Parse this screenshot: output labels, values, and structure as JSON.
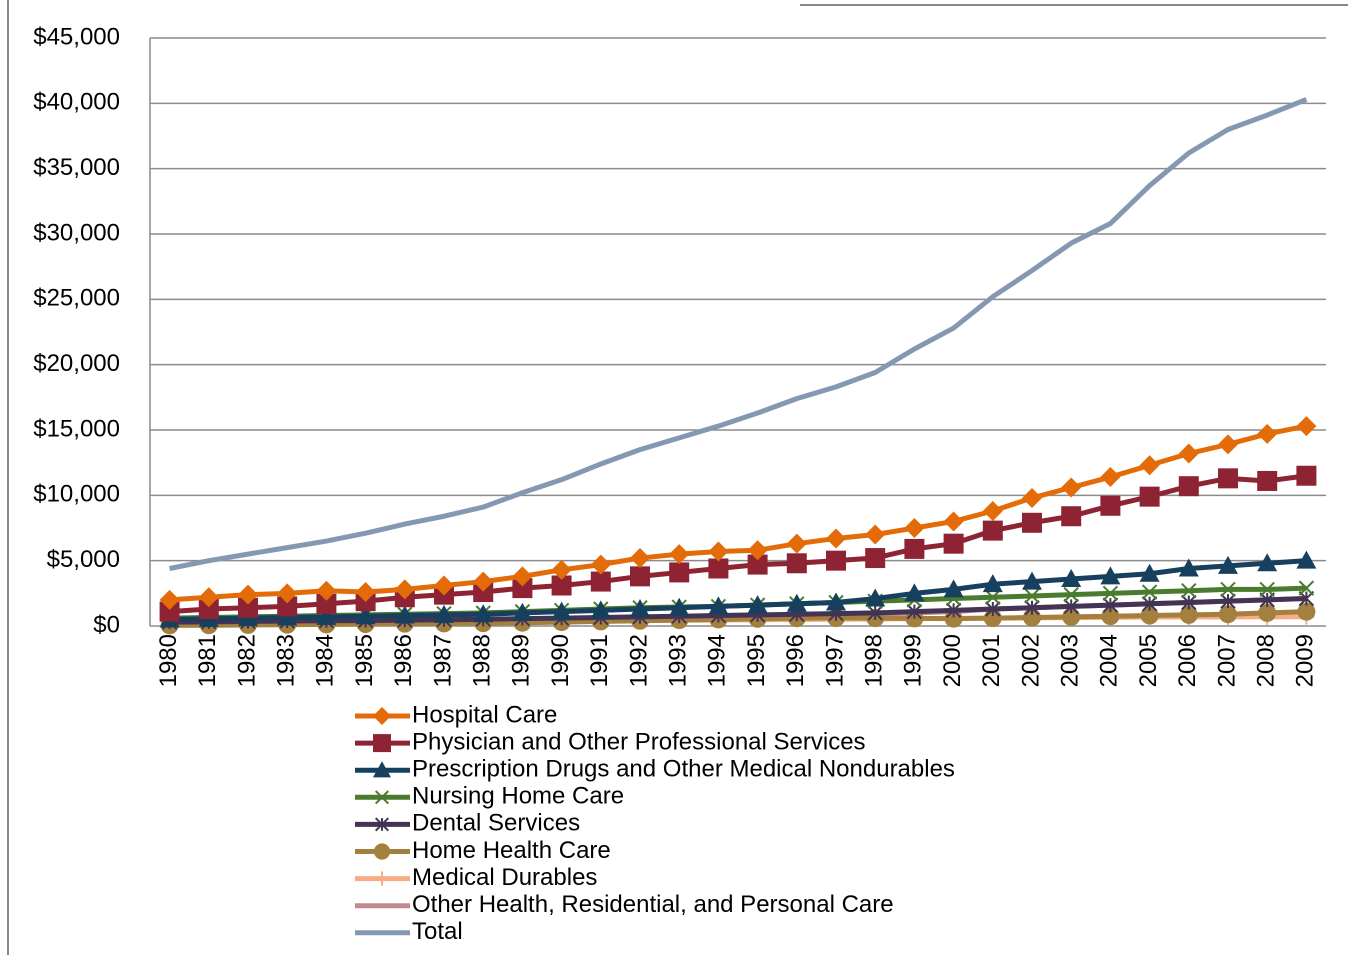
{
  "chart_data": {
    "type": "line",
    "categories": [
      "1980",
      "1981",
      "1982",
      "1983",
      "1984",
      "1985",
      "1986",
      "1987",
      "1988",
      "1989",
      "1990",
      "1991",
      "1992",
      "1993",
      "1994",
      "1995",
      "1996",
      "1997",
      "1998",
      "1999",
      "2000",
      "2001",
      "2002",
      "2003",
      "2004",
      "2005",
      "2006",
      "2007",
      "2008",
      "2009"
    ],
    "ylim": [
      0,
      45000
    ],
    "yticks": [
      {
        "value": 0,
        "label": "$0"
      },
      {
        "value": 5000,
        "label": "$5,000"
      },
      {
        "value": 10000,
        "label": "$10,000"
      },
      {
        "value": 15000,
        "label": "$15,000"
      },
      {
        "value": 20000,
        "label": "$20,000"
      },
      {
        "value": 25000,
        "label": "$25,000"
      },
      {
        "value": 30000,
        "label": "$30,000"
      },
      {
        "value": 35000,
        "label": "$35,000"
      },
      {
        "value": 40000,
        "label": "$40,000"
      },
      {
        "value": 45000,
        "label": "$45,000"
      }
    ],
    "grid": true,
    "legend": "bottom",
    "series": [
      {
        "name": "Hospital Care",
        "color": "#e36c09",
        "marker": "diamond",
        "values": [
          2000,
          2200,
          2400,
          2500,
          2700,
          2600,
          2800,
          3100,
          3400,
          3800,
          4300,
          4700,
          5200,
          5500,
          5700,
          5800,
          6300,
          6700,
          7000,
          7500,
          8000,
          8800,
          9800,
          10600,
          11400,
          12300,
          13200,
          13900,
          14700,
          15300
        ]
      },
      {
        "name": "Physician and Other Professional Services",
        "color": "#8e2433",
        "marker": "square",
        "values": [
          1100,
          1300,
          1400,
          1500,
          1700,
          1900,
          2200,
          2400,
          2600,
          2900,
          3100,
          3400,
          3800,
          4100,
          4400,
          4700,
          4800,
          5000,
          5200,
          5900,
          6300,
          7300,
          7900,
          8400,
          9200,
          9900,
          10700,
          11300,
          11100,
          11500
        ]
      },
      {
        "name": "Prescription Drugs and Other Medical Nondurables",
        "color": "#17405e",
        "marker": "triangle",
        "values": [
          500,
          550,
          600,
          650,
          700,
          750,
          800,
          850,
          900,
          1000,
          1100,
          1200,
          1300,
          1400,
          1500,
          1600,
          1700,
          1800,
          2100,
          2500,
          2800,
          3200,
          3400,
          3600,
          3800,
          4000,
          4400,
          4600,
          4800,
          5000
        ]
      },
      {
        "name": "Nursing Home Care",
        "color": "#4a7b2e",
        "marker": "x",
        "values": [
          600,
          650,
          700,
          750,
          800,
          850,
          900,
          950,
          1000,
          1100,
          1200,
          1300,
          1400,
          1450,
          1500,
          1600,
          1700,
          1800,
          1900,
          2000,
          2100,
          2200,
          2300,
          2400,
          2500,
          2600,
          2700,
          2800,
          2800,
          2900
        ]
      },
      {
        "name": "Dental Services",
        "color": "#433354",
        "marker": "star",
        "values": [
          300,
          320,
          350,
          380,
          400,
          420,
          450,
          480,
          520,
          560,
          600,
          650,
          700,
          750,
          800,
          850,
          900,
          950,
          1000,
          1100,
          1200,
          1300,
          1400,
          1500,
          1600,
          1700,
          1800,
          1900,
          2000,
          2100
        ]
      },
      {
        "name": "Home Health Care",
        "color": "#a3803e",
        "marker": "circle",
        "values": [
          50,
          60,
          80,
          100,
          120,
          150,
          180,
          200,
          220,
          250,
          300,
          350,
          400,
          450,
          500,
          550,
          600,
          620,
          600,
          580,
          560,
          600,
          650,
          700,
          750,
          800,
          850,
          900,
          1000,
          1100
        ]
      },
      {
        "name": "Medical Durables",
        "color": "#f8ab84",
        "marker": "plus",
        "values": [
          200,
          210,
          220,
          240,
          260,
          280,
          300,
          320,
          340,
          360,
          380,
          400,
          420,
          440,
          460,
          480,
          500,
          520,
          540,
          560,
          580,
          600,
          620,
          640,
          660,
          680,
          690,
          700,
          700,
          720
        ]
      },
      {
        "name": "Other Health, Residential, and Personal Care",
        "color": "#c08a8e",
        "marker": "none",
        "values": [
          100,
          120,
          150,
          180,
          200,
          230,
          260,
          300,
          350,
          400,
          450,
          500,
          560,
          620,
          680,
          740,
          800,
          860,
          920,
          1000,
          1100,
          1300,
          1400,
          1500,
          1600,
          1700,
          1800,
          1900,
          2000,
          2100
        ]
      },
      {
        "name": "Total",
        "color": "#8598b1",
        "marker": "none",
        "values": [
          4400,
          5000,
          5500,
          6000,
          6500,
          7100,
          7800,
          8400,
          9100,
          10200,
          11200,
          12400,
          13500,
          14400,
          15300,
          16300,
          17400,
          18300,
          19400,
          21200,
          22800,
          25200,
          27200,
          29300,
          30800,
          33700,
          36200,
          38000,
          39100,
          40300
        ]
      }
    ]
  }
}
